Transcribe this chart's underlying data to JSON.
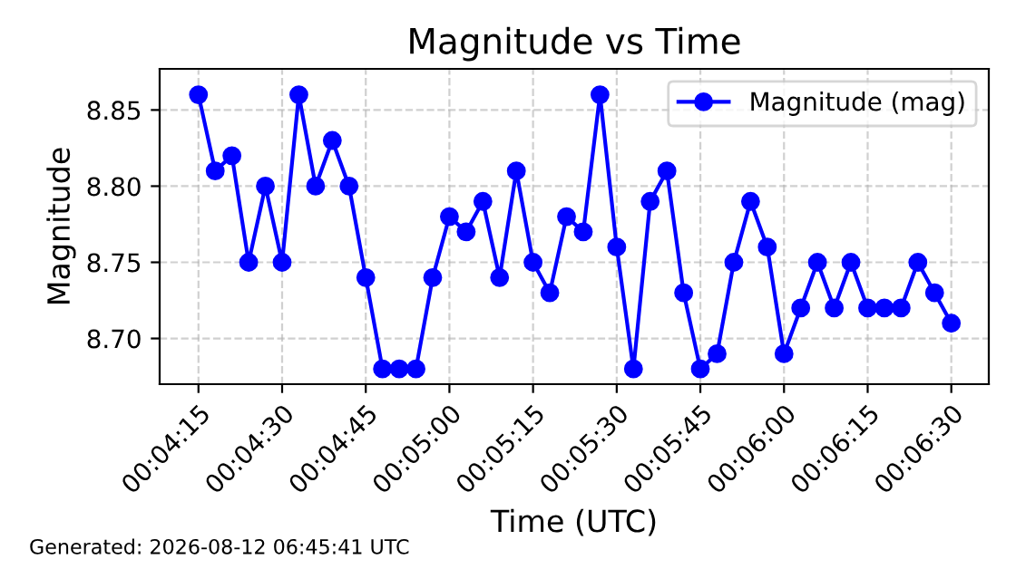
{
  "chart_data": {
    "type": "line",
    "title": "Magnitude vs Time",
    "xlabel": "Time (UTC)",
    "ylabel": "Magnitude",
    "x": [
      0.070833,
      0.071667,
      0.0725,
      0.073333,
      0.074167,
      0.075,
      0.075833,
      0.076667,
      0.0775,
      0.078333,
      0.079167,
      0.08,
      0.080833,
      0.081667,
      0.0825,
      0.083333,
      0.084167,
      0.085,
      0.085833,
      0.086667,
      0.0875,
      0.088333,
      0.089167,
      0.09,
      0.090833,
      0.091667,
      0.0925,
      0.093333,
      0.094167,
      0.095,
      0.095833,
      0.096667,
      0.0975,
      0.098333,
      0.099167,
      0.1,
      0.100833,
      0.101667,
      0.1025,
      0.103333,
      0.104167,
      0.105,
      0.105833,
      0.106667,
      0.1075,
      0.108333
    ],
    "series": [
      {
        "name": "Magnitude (mag)",
        "color": "#0000ff",
        "values": [
          8.86,
          8.81,
          8.82,
          8.75,
          8.8,
          8.75,
          8.86,
          8.8,
          8.83,
          8.8,
          8.74,
          8.68,
          8.68,
          8.68,
          8.74,
          8.78,
          8.77,
          8.79,
          8.74,
          8.81,
          8.75,
          8.73,
          8.78,
          8.77,
          8.86,
          8.76,
          8.68,
          8.79,
          8.81,
          8.73,
          8.68,
          8.69,
          8.75,
          8.79,
          8.76,
          8.69,
          8.72,
          8.75,
          8.72,
          8.75,
          8.72,
          8.72,
          8.72,
          8.75,
          8.73,
          8.71
        ]
      }
    ],
    "xlim": [
      0.0689,
      0.1102
    ],
    "xticks": [
      {
        "value": 0.070833,
        "label": "00:04:15"
      },
      {
        "value": 0.075,
        "label": "00:04:30"
      },
      {
        "value": 0.079167,
        "label": "00:04:45"
      },
      {
        "value": 0.083333,
        "label": "00:05:00"
      },
      {
        "value": 0.0875,
        "label": "00:05:15"
      },
      {
        "value": 0.091667,
        "label": "00:05:30"
      },
      {
        "value": 0.095833,
        "label": "00:05:45"
      },
      {
        "value": 0.1,
        "label": "00:06:00"
      },
      {
        "value": 0.104167,
        "label": "00:06:15"
      },
      {
        "value": 0.108333,
        "label": "00:06:30"
      }
    ],
    "ylim": [
      8.67,
      8.877
    ],
    "yticks": [
      {
        "value": 8.7,
        "label": "8.70"
      },
      {
        "value": 8.75,
        "label": "8.75"
      },
      {
        "value": 8.8,
        "label": "8.80"
      },
      {
        "value": 8.85,
        "label": "8.85"
      }
    ],
    "grid": true,
    "legend": "top right",
    "marker": "circle",
    "line_style": "solid",
    "annotations": [
      "Generated: 2026-08-12 06:45:41 UTC"
    ]
  }
}
